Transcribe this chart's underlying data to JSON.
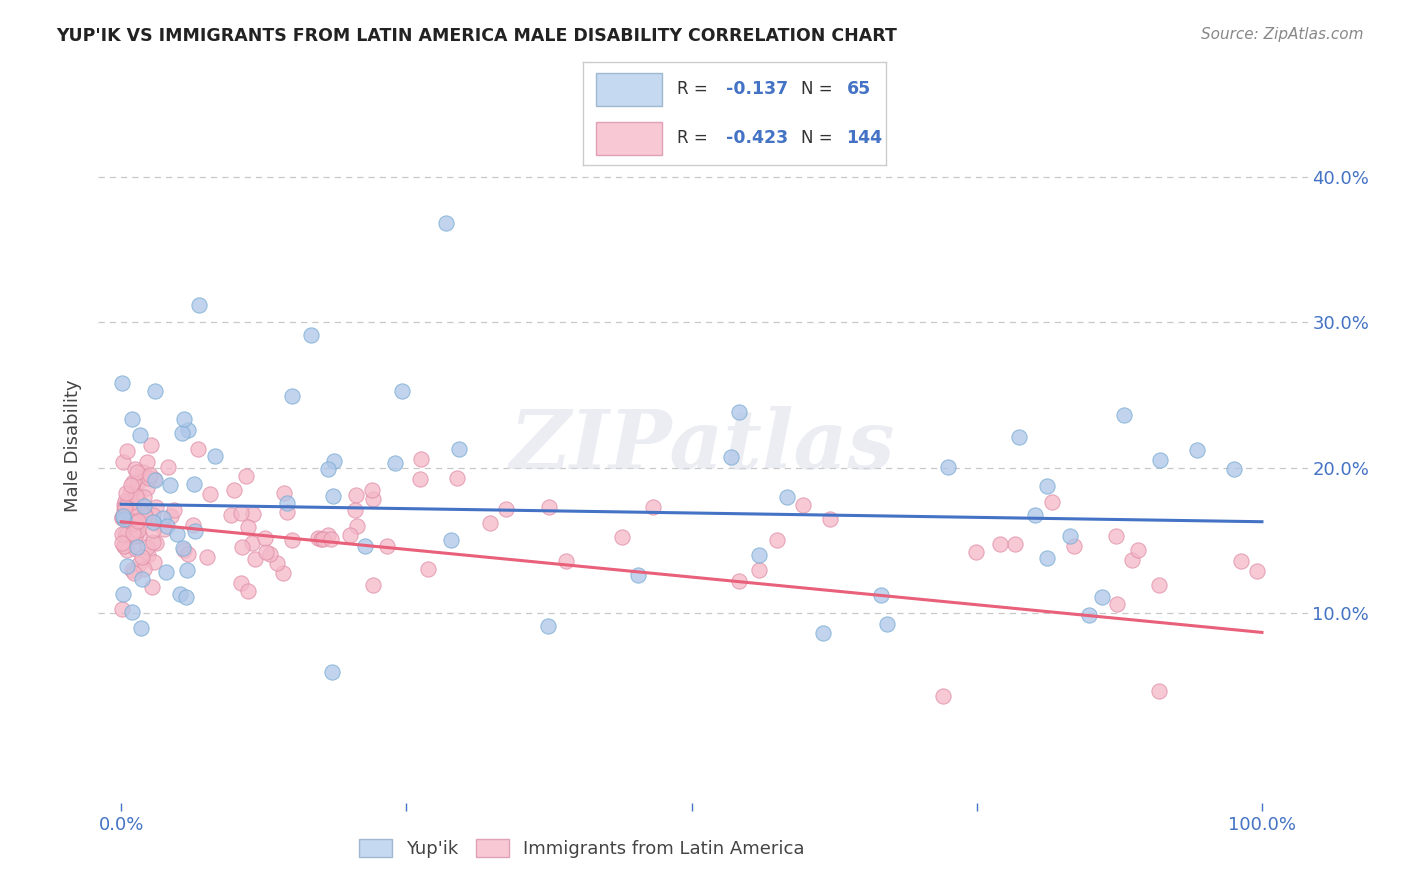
{
  "title": "YUP'IK VS IMMIGRANTS FROM LATIN AMERICA MALE DISABILITY CORRELATION CHART",
  "source": "Source: ZipAtlas.com",
  "ylabel": "Male Disability",
  "watermark": "ZIPatlas",
  "background_color": "#ffffff",
  "grid_color": "#c8c8c8",
  "axis_color": "#4472c4",
  "yup_scatter_color": "#aec6e8",
  "latin_scatter_color": "#f4b8c8",
  "yup_edge_color": "#7badd4",
  "latin_edge_color": "#e090a8",
  "yup_line_color": "#4472c4",
  "latin_line_color": "#e8607a",
  "legend_box_color": "#f0f0f4",
  "legend_border_color": "#d0d0d8",
  "r_yup": -0.137,
  "n_yup": 65,
  "r_latin": -0.423,
  "n_latin": 144,
  "yup_line_start": 0.175,
  "yup_line_end": 0.163,
  "latin_line_start": 0.163,
  "latin_line_end": 0.087,
  "ylim_min": -0.03,
  "ylim_max": 0.46,
  "xlim_min": -0.02,
  "xlim_max": 1.04
}
